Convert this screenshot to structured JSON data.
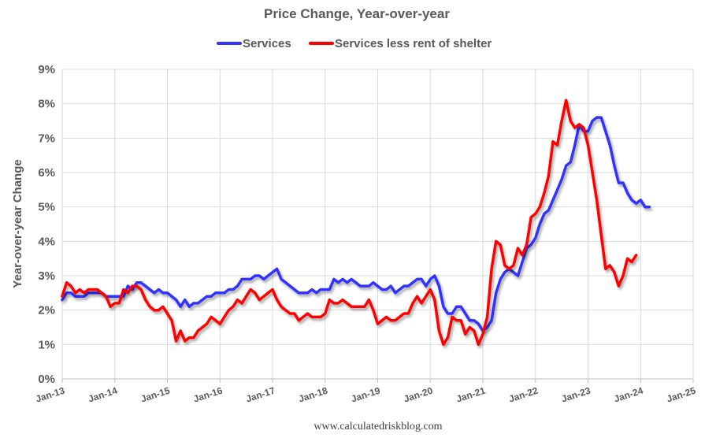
{
  "chart_data": {
    "type": "line",
    "title": "Price Change, Year-over-year",
    "ylabel": "Year-over-year Change",
    "xlabel": "",
    "source": "www.calculatedriskblog.com",
    "ylim": [
      0,
      9
    ],
    "y_ticks": [
      "0%",
      "1%",
      "2%",
      "3%",
      "4%",
      "5%",
      "6%",
      "7%",
      "8%",
      "9%"
    ],
    "x_ticks": [
      "Jan-13",
      "Jan-14",
      "Jan-15",
      "Jan-16",
      "Jan-17",
      "Jan-18",
      "Jan-19",
      "Jan-20",
      "Jan-21",
      "Jan-22",
      "Jan-23",
      "Jan-24",
      "Jan-25"
    ],
    "x_range": [
      "Jan-13",
      "Jan-25"
    ],
    "grid": true,
    "legend": "top",
    "series": [
      {
        "name": "Services",
        "color": "#3333ff",
        "points": [
          [
            "2013-01",
            2.3
          ],
          [
            "2013-02",
            2.5
          ],
          [
            "2013-03",
            2.5
          ],
          [
            "2013-04",
            2.4
          ],
          [
            "2013-05",
            2.4
          ],
          [
            "2013-06",
            2.4
          ],
          [
            "2013-07",
            2.5
          ],
          [
            "2013-08",
            2.5
          ],
          [
            "2013-09",
            2.5
          ],
          [
            "2013-10",
            2.5
          ],
          [
            "2013-11",
            2.4
          ],
          [
            "2013-12",
            2.4
          ],
          [
            "2014-01",
            2.4
          ],
          [
            "2014-02",
            2.4
          ],
          [
            "2014-03",
            2.4
          ],
          [
            "2014-04",
            2.7
          ],
          [
            "2014-05",
            2.6
          ],
          [
            "2014-06",
            2.8
          ],
          [
            "2014-07",
            2.8
          ],
          [
            "2014-08",
            2.7
          ],
          [
            "2014-09",
            2.6
          ],
          [
            "2014-10",
            2.5
          ],
          [
            "2014-11",
            2.6
          ],
          [
            "2014-12",
            2.5
          ],
          [
            "2015-01",
            2.5
          ],
          [
            "2015-02",
            2.4
          ],
          [
            "2015-03",
            2.3
          ],
          [
            "2015-04",
            2.1
          ],
          [
            "2015-05",
            2.3
          ],
          [
            "2015-06",
            2.1
          ],
          [
            "2015-07",
            2.2
          ],
          [
            "2015-08",
            2.2
          ],
          [
            "2015-09",
            2.3
          ],
          [
            "2015-10",
            2.4
          ],
          [
            "2015-11",
            2.4
          ],
          [
            "2015-12",
            2.5
          ],
          [
            "2016-01",
            2.5
          ],
          [
            "2016-02",
            2.5
          ],
          [
            "2016-03",
            2.6
          ],
          [
            "2016-04",
            2.6
          ],
          [
            "2016-05",
            2.7
          ],
          [
            "2016-06",
            2.9
          ],
          [
            "2016-07",
            2.9
          ],
          [
            "2016-08",
            2.9
          ],
          [
            "2016-09",
            3.0
          ],
          [
            "2016-10",
            3.0
          ],
          [
            "2016-11",
            2.9
          ],
          [
            "2016-12",
            3.0
          ],
          [
            "2017-01",
            3.1
          ],
          [
            "2017-02",
            3.2
          ],
          [
            "2017-03",
            2.9
          ],
          [
            "2017-04",
            2.8
          ],
          [
            "2017-05",
            2.7
          ],
          [
            "2017-06",
            2.6
          ],
          [
            "2017-07",
            2.5
          ],
          [
            "2017-08",
            2.5
          ],
          [
            "2017-09",
            2.5
          ],
          [
            "2017-10",
            2.6
          ],
          [
            "2017-11",
            2.5
          ],
          [
            "2017-12",
            2.6
          ],
          [
            "2018-01",
            2.6
          ],
          [
            "2018-02",
            2.6
          ],
          [
            "2018-03",
            2.9
          ],
          [
            "2018-04",
            2.8
          ],
          [
            "2018-05",
            2.9
          ],
          [
            "2018-06",
            2.8
          ],
          [
            "2018-07",
            2.9
          ],
          [
            "2018-08",
            2.8
          ],
          [
            "2018-09",
            2.7
          ],
          [
            "2018-10",
            2.7
          ],
          [
            "2018-11",
            2.7
          ],
          [
            "2018-12",
            2.8
          ],
          [
            "2019-01",
            2.7
          ],
          [
            "2019-02",
            2.6
          ],
          [
            "2019-03",
            2.6
          ],
          [
            "2019-04",
            2.7
          ],
          [
            "2019-05",
            2.5
          ],
          [
            "2019-06",
            2.6
          ],
          [
            "2019-07",
            2.7
          ],
          [
            "2019-08",
            2.7
          ],
          [
            "2019-09",
            2.8
          ],
          [
            "2019-10",
            2.9
          ],
          [
            "2019-11",
            2.9
          ],
          [
            "2019-12",
            2.7
          ],
          [
            "2020-01",
            2.9
          ],
          [
            "2020-02",
            3.0
          ],
          [
            "2020-03",
            2.7
          ],
          [
            "2020-04",
            2.1
          ],
          [
            "2020-05",
            1.9
          ],
          [
            "2020-06",
            1.9
          ],
          [
            "2020-07",
            2.1
          ],
          [
            "2020-08",
            2.1
          ],
          [
            "2020-09",
            1.9
          ],
          [
            "2020-10",
            1.7
          ],
          [
            "2020-11",
            1.7
          ],
          [
            "2020-12",
            1.6
          ],
          [
            "2021-01",
            1.4
          ],
          [
            "2021-02",
            1.5
          ],
          [
            "2021-03",
            1.7
          ],
          [
            "2021-04",
            2.5
          ],
          [
            "2021-05",
            2.9
          ],
          [
            "2021-06",
            3.1
          ],
          [
            "2021-07",
            3.2
          ],
          [
            "2021-08",
            3.1
          ],
          [
            "2021-09",
            3.0
          ],
          [
            "2021-10",
            3.4
          ],
          [
            "2021-11",
            3.8
          ],
          [
            "2021-12",
            3.9
          ],
          [
            "2022-01",
            4.1
          ],
          [
            "2022-02",
            4.5
          ],
          [
            "2022-03",
            4.8
          ],
          [
            "2022-04",
            4.9
          ],
          [
            "2022-05",
            5.2
          ],
          [
            "2022-06",
            5.5
          ],
          [
            "2022-07",
            5.8
          ],
          [
            "2022-08",
            6.2
          ],
          [
            "2022-09",
            6.3
          ],
          [
            "2022-10",
            6.8
          ],
          [
            "2022-11",
            7.4
          ],
          [
            "2022-12",
            7.2
          ],
          [
            "2023-01",
            7.2
          ],
          [
            "2023-02",
            7.5
          ],
          [
            "2023-03",
            7.6
          ],
          [
            "2023-04",
            7.6
          ],
          [
            "2023-05",
            7.2
          ],
          [
            "2023-06",
            6.8
          ],
          [
            "2023-07",
            6.2
          ],
          [
            "2023-08",
            5.7
          ],
          [
            "2023-09",
            5.7
          ],
          [
            "2023-10",
            5.4
          ],
          [
            "2023-11",
            5.2
          ],
          [
            "2023-12",
            5.1
          ],
          [
            "2024-01",
            5.2
          ],
          [
            "2024-02",
            5.0
          ],
          [
            "2024-03",
            5.0
          ]
        ]
      },
      {
        "name": "Services less rent of shelter",
        "color": "#ff0000",
        "points": [
          [
            "2013-01",
            2.4
          ],
          [
            "2013-02",
            2.8
          ],
          [
            "2013-03",
            2.7
          ],
          [
            "2013-04",
            2.5
          ],
          [
            "2013-05",
            2.6
          ],
          [
            "2013-06",
            2.5
          ],
          [
            "2013-07",
            2.6
          ],
          [
            "2013-08",
            2.6
          ],
          [
            "2013-09",
            2.6
          ],
          [
            "2013-10",
            2.5
          ],
          [
            "2013-11",
            2.4
          ],
          [
            "2013-12",
            2.1
          ],
          [
            "2014-01",
            2.2
          ],
          [
            "2014-02",
            2.2
          ],
          [
            "2014-03",
            2.6
          ],
          [
            "2014-04",
            2.5
          ],
          [
            "2014-05",
            2.7
          ],
          [
            "2014-06",
            2.7
          ],
          [
            "2014-07",
            2.6
          ],
          [
            "2014-08",
            2.3
          ],
          [
            "2014-09",
            2.1
          ],
          [
            "2014-10",
            2.0
          ],
          [
            "2014-11",
            2.0
          ],
          [
            "2014-12",
            2.1
          ],
          [
            "2015-01",
            1.9
          ],
          [
            "2015-02",
            1.7
          ],
          [
            "2015-03",
            1.1
          ],
          [
            "2015-04",
            1.4
          ],
          [
            "2015-05",
            1.1
          ],
          [
            "2015-06",
            1.2
          ],
          [
            "2015-07",
            1.2
          ],
          [
            "2015-08",
            1.4
          ],
          [
            "2015-09",
            1.5
          ],
          [
            "2015-10",
            1.6
          ],
          [
            "2015-11",
            1.8
          ],
          [
            "2015-12",
            1.7
          ],
          [
            "2016-01",
            1.6
          ],
          [
            "2016-02",
            1.8
          ],
          [
            "2016-03",
            2.0
          ],
          [
            "2016-04",
            2.1
          ],
          [
            "2016-05",
            2.3
          ],
          [
            "2016-06",
            2.2
          ],
          [
            "2016-07",
            2.4
          ],
          [
            "2016-08",
            2.6
          ],
          [
            "2016-09",
            2.5
          ],
          [
            "2016-10",
            2.3
          ],
          [
            "2016-11",
            2.4
          ],
          [
            "2016-12",
            2.5
          ],
          [
            "2017-01",
            2.6
          ],
          [
            "2017-02",
            2.3
          ],
          [
            "2017-03",
            2.1
          ],
          [
            "2017-04",
            2.0
          ],
          [
            "2017-05",
            1.9
          ],
          [
            "2017-06",
            1.9
          ],
          [
            "2017-07",
            1.7
          ],
          [
            "2017-08",
            1.8
          ],
          [
            "2017-09",
            1.9
          ],
          [
            "2017-10",
            1.8
          ],
          [
            "2017-11",
            1.8
          ],
          [
            "2017-12",
            1.8
          ],
          [
            "2018-01",
            1.9
          ],
          [
            "2018-02",
            2.3
          ],
          [
            "2018-03",
            2.2
          ],
          [
            "2018-04",
            2.2
          ],
          [
            "2018-05",
            2.3
          ],
          [
            "2018-06",
            2.2
          ],
          [
            "2018-07",
            2.1
          ],
          [
            "2018-08",
            2.1
          ],
          [
            "2018-09",
            2.1
          ],
          [
            "2018-10",
            2.1
          ],
          [
            "2018-11",
            2.3
          ],
          [
            "2018-12",
            2.0
          ],
          [
            "2019-01",
            1.6
          ],
          [
            "2019-02",
            1.7
          ],
          [
            "2019-03",
            1.8
          ],
          [
            "2019-04",
            1.7
          ],
          [
            "2019-05",
            1.7
          ],
          [
            "2019-06",
            1.8
          ],
          [
            "2019-07",
            1.9
          ],
          [
            "2019-08",
            1.9
          ],
          [
            "2019-09",
            2.2
          ],
          [
            "2019-10",
            2.4
          ],
          [
            "2019-11",
            2.2
          ],
          [
            "2019-12",
            2.4
          ],
          [
            "2020-01",
            2.6
          ],
          [
            "2020-02",
            2.3
          ],
          [
            "2020-03",
            1.4
          ],
          [
            "2020-04",
            1.0
          ],
          [
            "2020-05",
            1.2
          ],
          [
            "2020-06",
            1.8
          ],
          [
            "2020-07",
            1.7
          ],
          [
            "2020-08",
            1.7
          ],
          [
            "2020-09",
            1.3
          ],
          [
            "2020-10",
            1.5
          ],
          [
            "2020-11",
            1.4
          ],
          [
            "2020-12",
            1.0
          ],
          [
            "2021-01",
            1.3
          ],
          [
            "2021-02",
            1.8
          ],
          [
            "2021-03",
            3.2
          ],
          [
            "2021-04",
            4.0
          ],
          [
            "2021-05",
            3.9
          ],
          [
            "2021-06",
            3.3
          ],
          [
            "2021-07",
            3.2
          ],
          [
            "2021-08",
            3.3
          ],
          [
            "2021-09",
            3.8
          ],
          [
            "2021-10",
            3.6
          ],
          [
            "2021-11",
            3.9
          ],
          [
            "2021-12",
            4.7
          ],
          [
            "2022-01",
            4.8
          ],
          [
            "2022-02",
            5.0
          ],
          [
            "2022-03",
            5.4
          ],
          [
            "2022-04",
            5.9
          ],
          [
            "2022-05",
            6.9
          ],
          [
            "2022-06",
            6.8
          ],
          [
            "2022-07",
            7.5
          ],
          [
            "2022-08",
            8.1
          ],
          [
            "2022-09",
            7.5
          ],
          [
            "2022-10",
            7.3
          ],
          [
            "2022-11",
            7.4
          ],
          [
            "2022-12",
            7.3
          ],
          [
            "2023-01",
            6.8
          ],
          [
            "2023-02",
            6.0
          ],
          [
            "2023-03",
            5.2
          ],
          [
            "2023-04",
            4.2
          ],
          [
            "2023-05",
            3.2
          ],
          [
            "2023-06",
            3.3
          ],
          [
            "2023-07",
            3.1
          ],
          [
            "2023-08",
            2.7
          ],
          [
            "2023-09",
            3.0
          ],
          [
            "2023-10",
            3.5
          ],
          [
            "2023-11",
            3.4
          ],
          [
            "2023-12",
            3.6
          ]
        ]
      }
    ]
  }
}
